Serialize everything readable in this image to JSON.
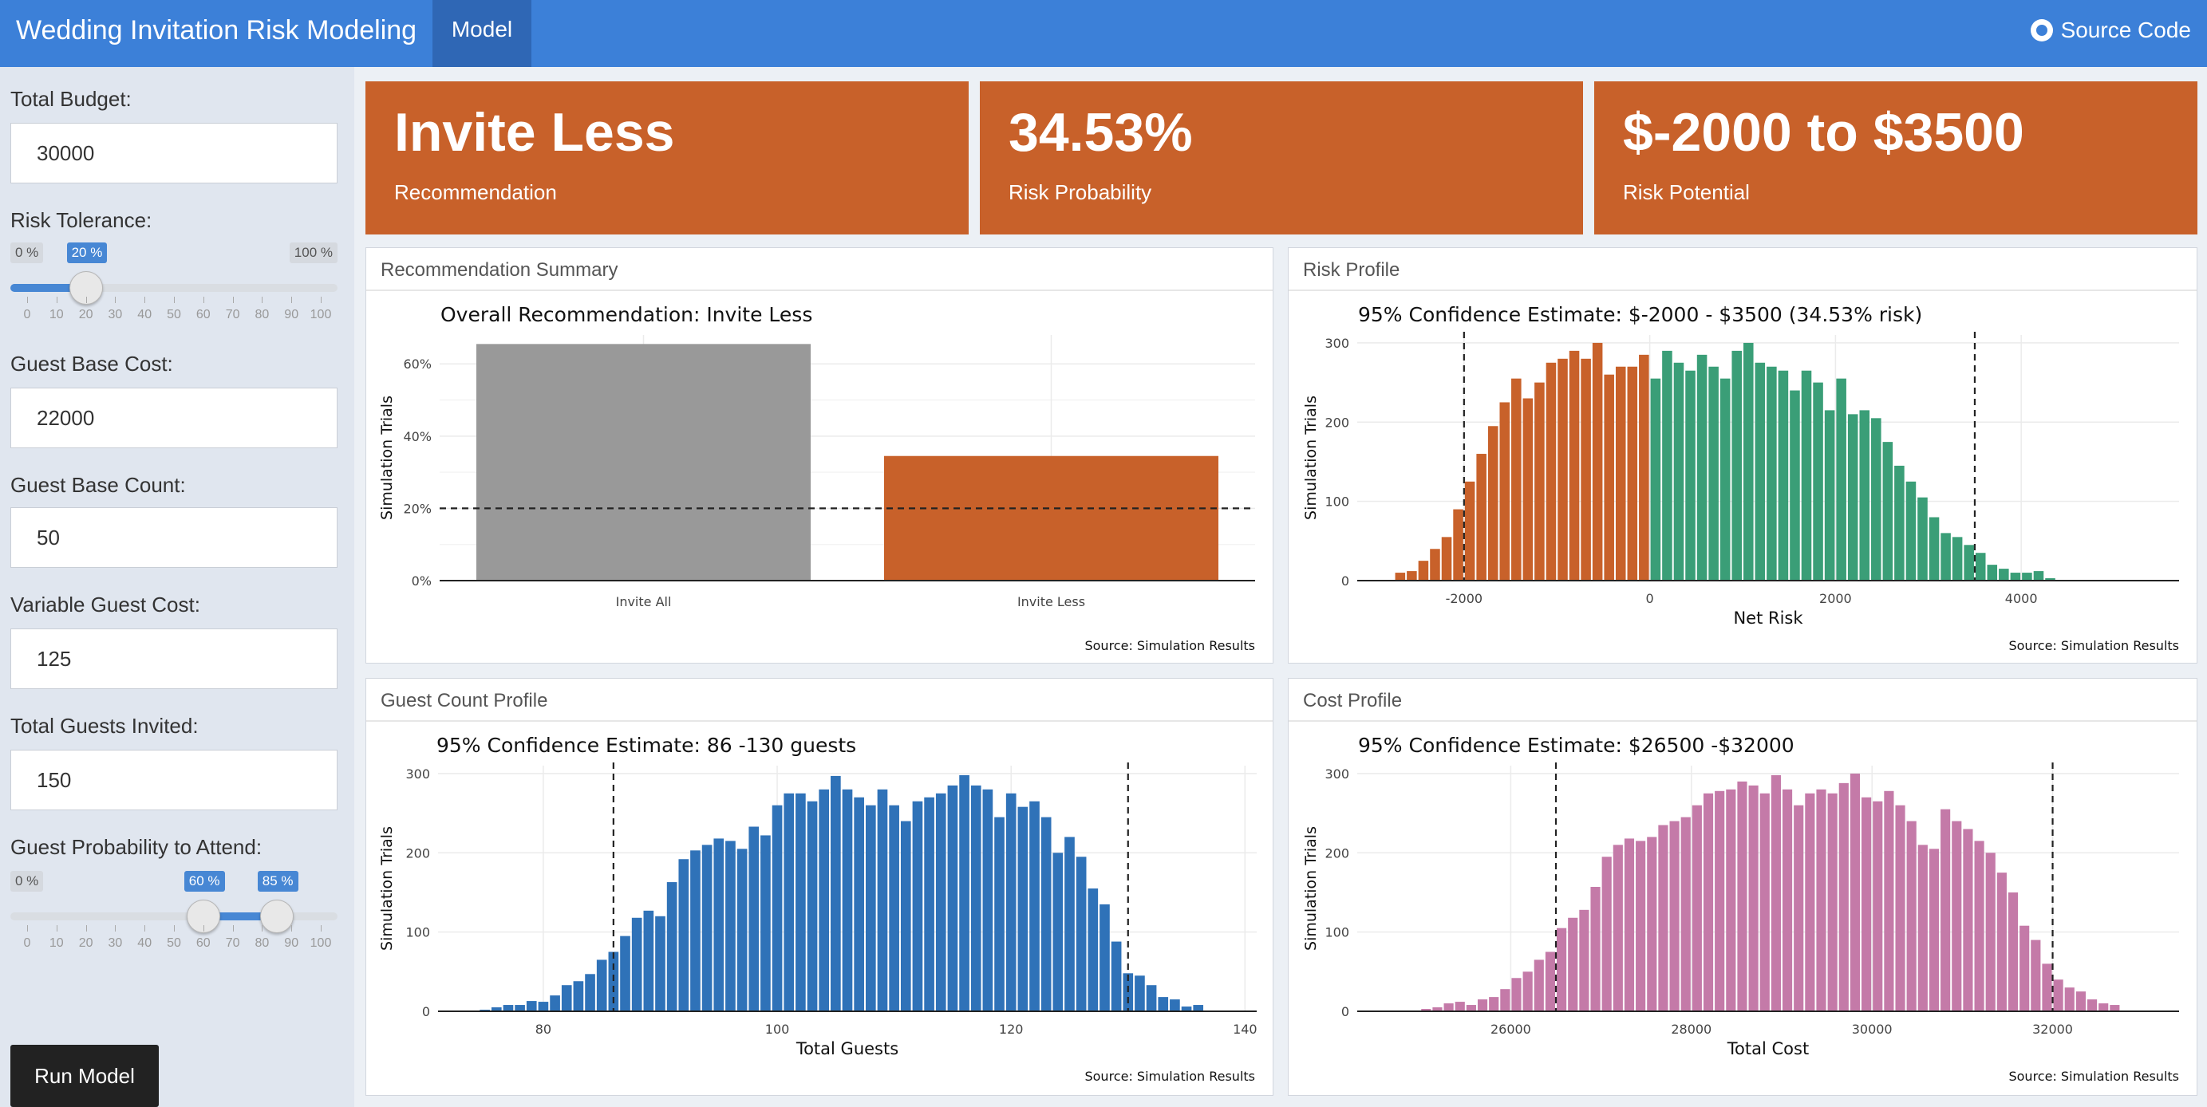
{
  "navbar": {
    "brand": "Wedding Invitation Risk Modeling",
    "tab_model": "Model",
    "source_link": "Source Code",
    "color": "#3c80d8"
  },
  "sidebar": {
    "total_budget_label": "Total Budget:",
    "total_budget_value": "30000",
    "risk_tolerance_label": "Risk Tolerance:",
    "risk_tolerance": {
      "min_label": "0 %",
      "max_label": "100 %",
      "value_label": "20 %",
      "value": 20,
      "ticks": [
        "0",
        "10",
        "20",
        "30",
        "40",
        "50",
        "60",
        "70",
        "80",
        "90",
        "100"
      ]
    },
    "guest_base_cost_label": "Guest Base Cost:",
    "guest_base_cost_value": "22000",
    "guest_base_count_label": "Guest Base Count:",
    "guest_base_count_value": "50",
    "variable_guest_cost_label": "Variable Guest Cost:",
    "variable_guest_cost_value": "125",
    "total_guests_invited_label": "Total Guests Invited:",
    "total_guests_invited_value": "150",
    "guest_probability_label": "Guest Probability to Attend:",
    "guest_probability": {
      "min_label": "0 %",
      "low_label": "60 %",
      "high_label": "85 %",
      "low": 60,
      "high": 85,
      "ticks": [
        "0",
        "10",
        "20",
        "30",
        "40",
        "50",
        "60",
        "70",
        "80",
        "90",
        "100"
      ]
    },
    "run_button": "Run Model"
  },
  "value_boxes": [
    {
      "value": "Invite Less",
      "label": "Recommendation"
    },
    {
      "value": "34.53%",
      "label": "Risk Probability"
    },
    {
      "value": "$-2000 to $3500",
      "label": "Risk Potential"
    }
  ],
  "value_box_color": "#c8612a",
  "panels": {
    "recommendation": {
      "title": "Recommendation Summary",
      "source": "Source: Simulation Results"
    },
    "risk": {
      "title": "Risk Profile",
      "source": "Source: Simulation Results"
    },
    "guest": {
      "title": "Guest Count Profile",
      "source": "Source: Simulation Results"
    },
    "cost": {
      "title": "Cost Profile",
      "source": "Source: Simulation Results"
    }
  },
  "chart_data": [
    {
      "type": "bar",
      "title": "Overall Recommendation: Invite Less",
      "xlabel": "",
      "ylabel": "Simulation Trials",
      "categories": [
        "Invite All",
        "Invite Less"
      ],
      "values": [
        65.5,
        34.5
      ],
      "colors": [
        "#999999",
        "#c8612a"
      ],
      "yticks": [
        "0%",
        "20%",
        "40%",
        "60%"
      ],
      "ylim": [
        0,
        68
      ],
      "reference_line": 20,
      "grid": true
    },
    {
      "type": "bar",
      "title": "95% Confidence Estimate: $-2000 - $3500 (34.53% risk)",
      "xlabel": "Net Risk",
      "ylabel": "Simulation Trials",
      "x_start": -2750,
      "bin_width": 125,
      "values": [
        10,
        12,
        25,
        40,
        55,
        90,
        125,
        160,
        195,
        225,
        255,
        230,
        250,
        275,
        280,
        290,
        280,
        300,
        260,
        270,
        270,
        285,
        255,
        290,
        275,
        265,
        285,
        270,
        255,
        290,
        300,
        275,
        270,
        265,
        240,
        265,
        250,
        215,
        255,
        210,
        215,
        205,
        175,
        145,
        125,
        105,
        80,
        60,
        55,
        45,
        35,
        20,
        15,
        10,
        10,
        12,
        3
      ],
      "colors": {
        "negative": "#c8612a",
        "near_zero": "#f0e442",
        "positive": "#3a9e77"
      },
      "xticks": [
        "-2000",
        "0",
        "2000",
        "4000"
      ],
      "xtick_values": [
        -2000,
        0,
        2000,
        4000
      ],
      "yticks": [
        "0",
        "100",
        "200",
        "300"
      ],
      "xlim": [
        -3150,
        5700
      ],
      "ylim": [
        0,
        310
      ],
      "ci_lines": [
        -2000,
        3500
      ],
      "grid": true
    },
    {
      "type": "bar",
      "title": "95% Confidence Estimate: 86 -130 guests",
      "xlabel": "Total Guests",
      "ylabel": "Simulation Trials",
      "x_start": 71.5,
      "bin_width": 1,
      "values": [
        1,
        0,
        0,
        2,
        5,
        8,
        8,
        13,
        12,
        20,
        33,
        38,
        47,
        65,
        75,
        95,
        118,
        127,
        120,
        163,
        192,
        203,
        210,
        218,
        215,
        205,
        233,
        222,
        260,
        275,
        275,
        265,
        280,
        297,
        280,
        270,
        260,
        280,
        260,
        240,
        265,
        270,
        275,
        285,
        298,
        285,
        280,
        245,
        275,
        258,
        265,
        245,
        200,
        220,
        195,
        155,
        135,
        88,
        48,
        45,
        33,
        18,
        15,
        6,
        8
      ],
      "color": "#2f72b8",
      "xticks": [
        "80",
        "100",
        "120",
        "140"
      ],
      "xtick_values": [
        80,
        100,
        120,
        140
      ],
      "yticks": [
        "0",
        "100",
        "200",
        "300"
      ],
      "xlim": [
        71,
        141
      ],
      "ylim": [
        0,
        310
      ],
      "ci_lines": [
        86,
        130
      ],
      "grid": true
    },
    {
      "type": "bar",
      "title": "95% Confidence Estimate: $26500 -$32000",
      "xlabel": "Total Cost",
      "ylabel": "Simulation Trials",
      "x_start": 25000,
      "bin_width": 125,
      "values": [
        3,
        5,
        10,
        12,
        8,
        15,
        18,
        28,
        42,
        50,
        65,
        75,
        105,
        118,
        128,
        157,
        195,
        210,
        218,
        215,
        220,
        235,
        240,
        245,
        260,
        275,
        278,
        280,
        290,
        285,
        275,
        298,
        280,
        260,
        275,
        280,
        275,
        288,
        300,
        270,
        265,
        278,
        260,
        240,
        210,
        205,
        255,
        240,
        230,
        215,
        200,
        175,
        150,
        108,
        90,
        60,
        40,
        30,
        25,
        15,
        10,
        8
      ],
      "color": "#c47aa8",
      "xticks": [
        "26000",
        "28000",
        "30000",
        "32000"
      ],
      "xtick_values": [
        26000,
        28000,
        30000,
        32000
      ],
      "yticks": [
        "0",
        "100",
        "200",
        "300"
      ],
      "xlim": [
        24300,
        33400
      ],
      "ylim": [
        0,
        310
      ],
      "ci_lines": [
        26500,
        32000
      ],
      "grid": true
    }
  ]
}
